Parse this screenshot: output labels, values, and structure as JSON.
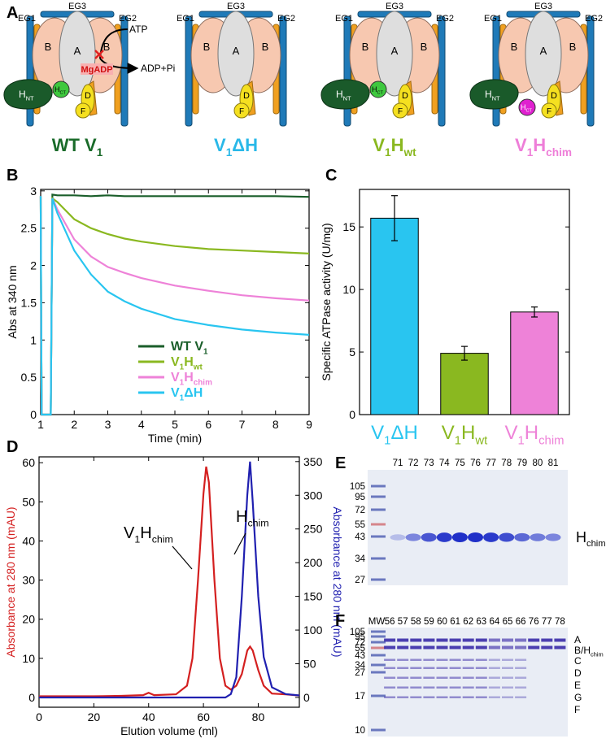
{
  "panel_A": {
    "label": "A",
    "complexes": [
      {
        "title": [
          {
            "text": "WT V"
          },
          {
            "text": "1",
            "sub": true
          }
        ],
        "title_color": "#1a6b2a",
        "eg1": "EG1",
        "eg2": "EG2",
        "eg3": "EG3",
        "a": "A",
        "b_left": "B",
        "b_right": "B",
        "d": "D",
        "f": "F",
        "h_nt": [
          {
            "text": "H"
          },
          {
            "text": "NT",
            "sub": true
          }
        ],
        "h_ct": [
          {
            "text": "H"
          },
          {
            "text": "CT",
            "sub": true
          }
        ],
        "h_ct_color": "#3ec83e",
        "atp": "ATP",
        "adp": "ADP+Pi",
        "mgadp": "MgADP"
      },
      {
        "title": [
          {
            "text": "V"
          },
          {
            "text": "1",
            "sub": true
          },
          {
            "text": "ΔH"
          }
        ],
        "title_color": "#29b8e8",
        "eg1": "EG1",
        "eg2": "EG2",
        "eg3": "EG3",
        "a": "A",
        "b_left": "B",
        "b_right": "B",
        "d": "D",
        "f": "F"
      },
      {
        "title": [
          {
            "text": "V"
          },
          {
            "text": "1",
            "sub": true
          },
          {
            "text": "H"
          },
          {
            "text": "wt",
            "sub": true
          }
        ],
        "title_color": "#8ab820",
        "eg1": "EG1",
        "eg2": "EG2",
        "eg3": "EG3",
        "a": "A",
        "b_left": "B",
        "b_right": "B",
        "d": "D",
        "f": "F",
        "h_nt": [
          {
            "text": "H"
          },
          {
            "text": "NT",
            "sub": true
          }
        ],
        "h_ct": [
          {
            "text": "H"
          },
          {
            "text": "CT",
            "sub": true
          }
        ],
        "h_ct_color": "#3ec83e"
      },
      {
        "title": [
          {
            "text": "V"
          },
          {
            "text": "1",
            "sub": true
          },
          {
            "text": "H"
          },
          {
            "text": "chim",
            "sub": true
          }
        ],
        "title_color": "#ee7ed8",
        "eg1": "EG1",
        "eg2": "EG2",
        "eg3": "EG3",
        "a": "A",
        "b_left": "B",
        "b_right": "B",
        "d": "D",
        "f": "F",
        "h_nt": [
          {
            "text": "H"
          },
          {
            "text": "NT",
            "sub": true
          }
        ],
        "h_ct": [
          {
            "text": "H"
          },
          {
            "text": "CT",
            "sub": true
          }
        ],
        "h_ct_color": "#e020d0"
      }
    ]
  },
  "chart_data": [
    {
      "type": "line",
      "panel_label": "B",
      "xlabel": "Time (min)",
      "ylabel": "Abs at 340 nm",
      "x": [
        1,
        1.03,
        1.3,
        1.35,
        1.5,
        2,
        2.5,
        3,
        3.5,
        4,
        5,
        6,
        7,
        8,
        9
      ],
      "xlim": [
        1,
        9
      ],
      "xticks": [
        1,
        2,
        3,
        4,
        5,
        6,
        7,
        8,
        9
      ],
      "ylim": [
        0,
        3.02
      ],
      "yticks": [
        0,
        0.5,
        1,
        1.5,
        2,
        2.5,
        3
      ],
      "legend": "lower center",
      "series": [
        {
          "name": [
            {
              "text": "WT V"
            },
            {
              "text": "1",
              "sub": true
            }
          ],
          "color": "#1a5e2a",
          "values": [
            2.93,
            0,
            0,
            2.95,
            2.94,
            2.94,
            2.93,
            2.94,
            2.93,
            2.93,
            2.93,
            2.93,
            2.93,
            2.93,
            2.92
          ]
        },
        {
          "name": [
            {
              "text": "V"
            },
            {
              "text": "1",
              "sub": true
            },
            {
              "text": "H"
            },
            {
              "text": "wt",
              "sub": true
            }
          ],
          "color": "#8ab820",
          "values": [
            2.93,
            0,
            0,
            2.9,
            2.85,
            2.62,
            2.5,
            2.42,
            2.36,
            2.32,
            2.26,
            2.22,
            2.2,
            2.18,
            2.16
          ]
        },
        {
          "name": [
            {
              "text": "V"
            },
            {
              "text": "1",
              "sub": true
            },
            {
              "text": "H"
            },
            {
              "text": "chim",
              "sub": true
            }
          ],
          "color": "#ee82d8",
          "values": [
            2.93,
            0,
            0,
            2.9,
            2.75,
            2.35,
            2.12,
            1.98,
            1.9,
            1.83,
            1.73,
            1.66,
            1.6,
            1.56,
            1.53
          ]
        },
        {
          "name": [
            {
              "text": "V"
            },
            {
              "text": "1",
              "sub": true
            },
            {
              "text": "ΔH"
            }
          ],
          "color": "#29c5f0",
          "values": [
            2.93,
            0,
            0,
            2.9,
            2.7,
            2.2,
            1.88,
            1.65,
            1.52,
            1.42,
            1.28,
            1.2,
            1.14,
            1.1,
            1.07
          ]
        }
      ]
    },
    {
      "type": "bar",
      "panel_label": "C",
      "ylabel": "Specific ATPase activity (U/mg)",
      "categories": [
        [
          {
            "text": "V"
          },
          {
            "text": "1",
            "sub": true
          },
          {
            "text": "ΔH"
          }
        ],
        [
          {
            "text": "V"
          },
          {
            "text": "1",
            "sub": true
          },
          {
            "text": "H"
          },
          {
            "text": "wt",
            "sub": true
          }
        ],
        [
          {
            "text": "V"
          },
          {
            "text": "1",
            "sub": true
          },
          {
            "text": "H"
          },
          {
            "text": "chim",
            "sub": true
          }
        ]
      ],
      "values": [
        15.7,
        4.9,
        8.2
      ],
      "errors": [
        1.8,
        0.55,
        0.4
      ],
      "colors": [
        "#29c5f0",
        "#8ab820",
        "#ee82d8"
      ],
      "ylim": [
        0,
        18
      ],
      "yticks": [
        0,
        5,
        10,
        15
      ]
    },
    {
      "type": "line",
      "panel_label": "D",
      "xlabel": "Elution volume (ml)",
      "ylabel": "Absorbance at 280 nm (mAU)",
      "ylabel_color": "#d42020",
      "y2label": "Absorbance at 280 nm (mAU)",
      "y2label_color": "#2020b0",
      "x": [
        0,
        10,
        20,
        30,
        38,
        40,
        42,
        50,
        54,
        56,
        58,
        60,
        61,
        62,
        64,
        66,
        68,
        70,
        72,
        74,
        76,
        77,
        78,
        80,
        82,
        85,
        90,
        95
      ],
      "xlim": [
        0,
        95
      ],
      "xticks": [
        0,
        20,
        40,
        60,
        80
      ],
      "ylim": [
        -2.5,
        61.5
      ],
      "yticks": [
        0,
        10,
        20,
        30,
        40,
        50,
        60
      ],
      "y2lim": [
        -14.5,
        357
      ],
      "y2ticks": [
        0,
        50,
        100,
        150,
        200,
        250,
        300,
        350
      ],
      "series": [
        {
          "color": "#d42020",
          "values": [
            0.3,
            0.3,
            0.3,
            0.4,
            0.6,
            1.2,
            0.6,
            0.8,
            3,
            10,
            30,
            52,
            59,
            55,
            30,
            10,
            3,
            2,
            3,
            6,
            12,
            13,
            12,
            7,
            3,
            1,
            0.8,
            0.5
          ]
        },
        {
          "color": "#2020b0",
          "axis": "y2",
          "values": [
            0,
            0,
            0,
            0,
            0,
            0,
            0,
            0,
            0,
            0,
            0,
            0,
            0,
            0,
            0,
            0,
            0,
            5,
            30,
            150,
            300,
            350,
            290,
            150,
            60,
            15,
            5,
            3
          ]
        }
      ],
      "annotations": [
        [
          {
            "text": "V"
          },
          {
            "text": "1",
            "sub": true
          },
          {
            "text": "H"
          },
          {
            "text": "chim",
            "sub": true
          }
        ],
        [
          {
            "text": "H"
          },
          {
            "text": "chim",
            "sub": true
          }
        ]
      ]
    }
  ],
  "panel_E": {
    "label": "E",
    "lanes": [
      "71",
      "72",
      "73",
      "74",
      "75",
      "76",
      "77",
      "78",
      "79",
      "80",
      "81"
    ],
    "markers": [
      "105",
      "95",
      "72",
      "55",
      "43",
      "34",
      "27"
    ],
    "band_label": [
      {
        "text": "H"
      },
      {
        "text": "chim",
        "sub": true
      }
    ]
  },
  "panel_F": {
    "label": "F",
    "lanes": [
      "MW",
      "56",
      "57",
      "58",
      "59",
      "60",
      "61",
      "62",
      "63",
      "64",
      "65",
      "66",
      "76",
      "77",
      "78"
    ],
    "markers": [
      "105",
      "95",
      "72",
      "55",
      "43",
      "34",
      "27",
      "17",
      "10"
    ],
    "subunits": [
      [
        {
          "text": "A"
        }
      ],
      [
        {
          "text": "B/H"
        },
        {
          "text": "chim",
          "sub": true
        }
      ],
      [
        {
          "text": "C"
        }
      ],
      [
        {
          "text": "D"
        }
      ],
      [
        {
          "text": "E"
        }
      ],
      [
        {
          "text": "G"
        }
      ],
      [
        {
          "text": "F"
        }
      ]
    ]
  }
}
